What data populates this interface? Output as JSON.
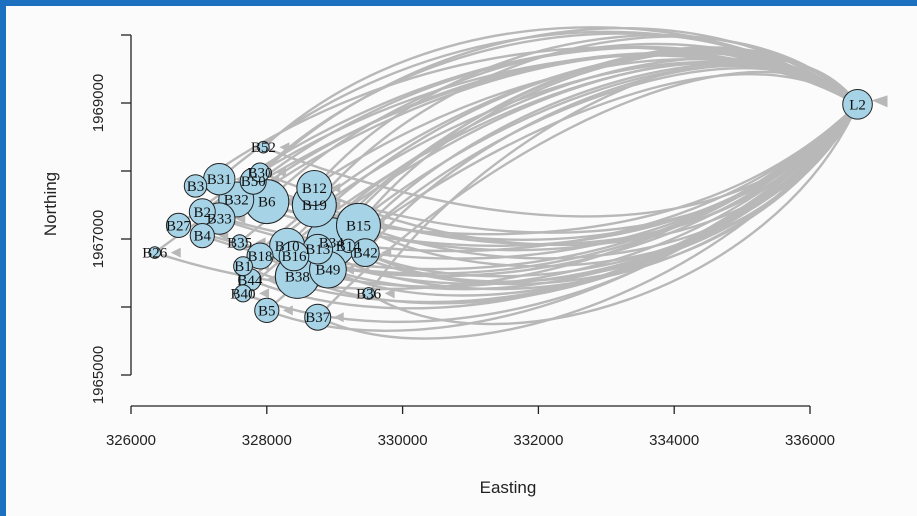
{
  "chart_data": {
    "type": "scatter",
    "subtype": "flow-network",
    "xlabel": "Easting",
    "ylabel": "Northing",
    "xlim": [
      326000,
      337000
    ],
    "ylim": [
      1964800,
      1970000
    ],
    "xticks": [
      326000,
      328000,
      330000,
      332000,
      334000,
      336000
    ],
    "xtick_labels": [
      "326000",
      "328000",
      "330000",
      "332000",
      "334000",
      "336000"
    ],
    "yticks": [
      1965000,
      1967000,
      1969000
    ],
    "ytick_labels": [
      "1965000",
      "1967000",
      "1969000"
    ],
    "grid": false,
    "colors": {
      "node_fill": "#a6d3e6",
      "node_stroke": "#222222",
      "edge": "#b8b8b8"
    },
    "hub": "L2",
    "nodes": [
      {
        "label": "L2",
        "x": 336700,
        "y": 1968980,
        "size": 1.2
      },
      {
        "label": "B52",
        "x": 327950,
        "y": 1968350,
        "size": 0.2
      },
      {
        "label": "B30",
        "x": 327900,
        "y": 1967980,
        "size": 0.6
      },
      {
        "label": "B31",
        "x": 327300,
        "y": 1967880,
        "size": 1.3
      },
      {
        "label": "B50",
        "x": 327800,
        "y": 1967850,
        "size": 1.0
      },
      {
        "label": "B3",
        "x": 326950,
        "y": 1967780,
        "size": 0.8
      },
      {
        "label": "B32",
        "x": 327550,
        "y": 1967580,
        "size": 1.5
      },
      {
        "label": "B6",
        "x": 328000,
        "y": 1967550,
        "size": 2.0
      },
      {
        "label": "B12",
        "x": 328700,
        "y": 1967750,
        "size": 1.5
      },
      {
        "label": "B19",
        "x": 328700,
        "y": 1967500,
        "size": 2.0
      },
      {
        "label": "B2",
        "x": 327050,
        "y": 1967400,
        "size": 1.0
      },
      {
        "label": "B33",
        "x": 327300,
        "y": 1967300,
        "size": 1.3
      },
      {
        "label": "B15",
        "x": 329350,
        "y": 1967200,
        "size": 2.0
      },
      {
        "label": "B27",
        "x": 326700,
        "y": 1967200,
        "size": 0.9
      },
      {
        "label": "B34",
        "x": 328950,
        "y": 1966950,
        "size": 2.3
      },
      {
        "label": "B14",
        "x": 329200,
        "y": 1966900,
        "size": 0.3
      },
      {
        "label": "B35",
        "x": 327600,
        "y": 1966950,
        "size": 0.4
      },
      {
        "label": "B4",
        "x": 327050,
        "y": 1967050,
        "size": 0.9
      },
      {
        "label": "B10",
        "x": 328300,
        "y": 1966900,
        "size": 1.5
      },
      {
        "label": "B13",
        "x": 328750,
        "y": 1966850,
        "size": 1.2
      },
      {
        "label": "B42",
        "x": 329450,
        "y": 1966800,
        "size": 1.1
      },
      {
        "label": "B18",
        "x": 327900,
        "y": 1966750,
        "size": 1.0
      },
      {
        "label": "B16",
        "x": 328400,
        "y": 1966750,
        "size": 1.2
      },
      {
        "label": "B26",
        "x": 326350,
        "y": 1966800,
        "size": 0.2
      },
      {
        "label": "B1",
        "x": 327650,
        "y": 1966600,
        "size": 0.6
      },
      {
        "label": "B49",
        "x": 328900,
        "y": 1966550,
        "size": 1.6
      },
      {
        "label": "B38",
        "x": 328450,
        "y": 1966450,
        "size": 2.0
      },
      {
        "label": "B44",
        "x": 327750,
        "y": 1966400,
        "size": 0.8
      },
      {
        "label": "B40",
        "x": 327650,
        "y": 1966200,
        "size": 0.5
      },
      {
        "label": "B36",
        "x": 329500,
        "y": 1966200,
        "size": 0.2
      },
      {
        "label": "B5",
        "x": 328000,
        "y": 1965950,
        "size": 0.9
      },
      {
        "label": "B37",
        "x": 328750,
        "y": 1965850,
        "size": 1.0
      }
    ]
  }
}
